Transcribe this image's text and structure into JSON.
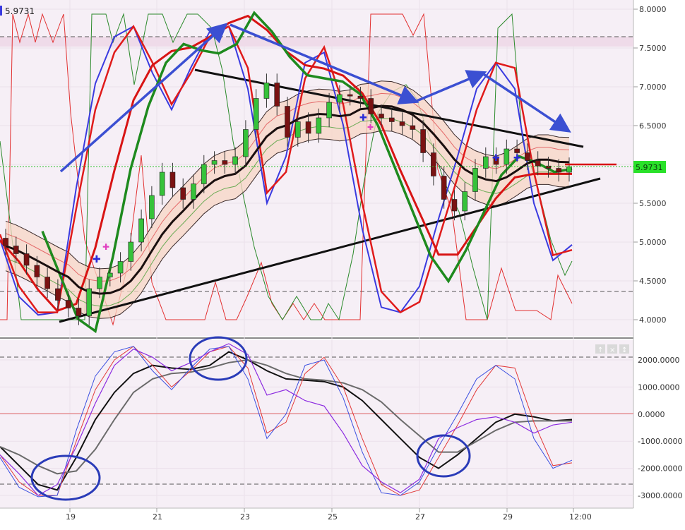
{
  "symbol_value": "5.9731",
  "panel_buttons": [
    "↑",
    "×",
    "↕"
  ],
  "colors": {
    "background": "#f5eef5",
    "candle_up": "#36c23a",
    "candle_down": "#7a1212",
    "last_price_tag": "#29e129",
    "band_fill": "#f7d7c4",
    "red_line": "#e01b1b",
    "blue_line": "#3a3ae0",
    "green_line": "#1e8a1e",
    "trend_arrow": "#3b4fd2",
    "annotation_circle": "#2a3bb8"
  },
  "chart_data": [
    {
      "type": "line",
      "panel": "price",
      "ylim": [
        3.85,
        8.05
      ],
      "y_ticks": [
        "8.0000",
        "7.5000",
        "7.0000",
        "6.5000",
        "6.0000",
        "5.5000",
        "5.0000",
        "4.5000",
        "4.0000"
      ],
      "x_ticks": [
        "19",
        "21",
        "23",
        "25",
        "27",
        "29",
        "12:00"
      ],
      "last_price": 5.9731,
      "last_price_label": "5.9731",
      "grid": true,
      "candles_approx": [
        {
          "o": 5.05,
          "c": 4.95
        },
        {
          "o": 4.95,
          "c": 4.85
        },
        {
          "o": 4.85,
          "c": 4.7
        },
        {
          "o": 4.7,
          "c": 4.55
        },
        {
          "o": 4.55,
          "c": 4.4
        },
        {
          "o": 4.4,
          "c": 4.25
        },
        {
          "o": 4.25,
          "c": 4.15
        },
        {
          "o": 4.15,
          "c": 4.05
        },
        {
          "o": 4.05,
          "c": 4.4
        },
        {
          "o": 4.4,
          "c": 4.55
        },
        {
          "o": 4.55,
          "c": 4.6
        },
        {
          "o": 4.6,
          "c": 4.75
        },
        {
          "o": 4.75,
          "c": 5.0
        },
        {
          "o": 5.0,
          "c": 5.3
        },
        {
          "o": 5.3,
          "c": 5.6
        },
        {
          "o": 5.6,
          "c": 5.9
        },
        {
          "o": 5.9,
          "c": 5.7
        },
        {
          "o": 5.7,
          "c": 5.55
        },
        {
          "o": 5.55,
          "c": 5.75
        },
        {
          "o": 5.75,
          "c": 6.0
        },
        {
          "o": 6.0,
          "c": 6.05
        },
        {
          "o": 6.05,
          "c": 6.0
        },
        {
          "o": 6.0,
          "c": 6.1
        },
        {
          "o": 6.1,
          "c": 6.45
        },
        {
          "o": 6.45,
          "c": 6.85
        },
        {
          "o": 6.85,
          "c": 7.05
        },
        {
          "o": 7.05,
          "c": 6.75
        },
        {
          "o": 6.75,
          "c": 6.35
        },
        {
          "o": 6.35,
          "c": 6.55
        },
        {
          "o": 6.55,
          "c": 6.4
        },
        {
          "o": 6.4,
          "c": 6.6
        },
        {
          "o": 6.6,
          "c": 6.8
        },
        {
          "o": 6.8,
          "c": 6.9
        },
        {
          "o": 6.9,
          "c": 6.88
        },
        {
          "o": 6.88,
          "c": 6.85
        },
        {
          "o": 6.85,
          "c": 6.65
        },
        {
          "o": 6.65,
          "c": 6.6
        },
        {
          "o": 6.6,
          "c": 6.55
        },
        {
          "o": 6.55,
          "c": 6.5
        },
        {
          "o": 6.5,
          "c": 6.45
        },
        {
          "o": 6.45,
          "c": 6.15
        },
        {
          "o": 6.15,
          "c": 5.85
        },
        {
          "o": 5.85,
          "c": 5.55
        },
        {
          "o": 5.55,
          "c": 5.4
        },
        {
          "o": 5.4,
          "c": 5.65
        },
        {
          "o": 5.65,
          "c": 5.95
        },
        {
          "o": 5.95,
          "c": 6.1
        },
        {
          "o": 6.1,
          "c": 6.0
        },
        {
          "o": 6.0,
          "c": 6.2
        },
        {
          "o": 6.2,
          "c": 6.15
        },
        {
          "o": 6.15,
          "c": 6.05
        },
        {
          "o": 6.05,
          "c": 5.98
        },
        {
          "o": 5.98,
          "c": 5.95
        },
        {
          "o": 5.95,
          "c": 5.9
        },
        {
          "o": 5.9,
          "c": 5.97
        }
      ]
    },
    {
      "type": "line",
      "panel": "oscillator",
      "ylim": [
        -3200,
        2700
      ],
      "y_ticks": [
        "2000.0000",
        "1000.0000",
        "0.0000",
        "-1000.0000",
        "-2000.0000",
        "-3000.0000"
      ],
      "x_ticks": [
        "19",
        "21",
        "23",
        "25",
        "27",
        "29",
        "12:00"
      ],
      "grid": true,
      "series": [
        {
          "values": [
            -1200,
            -1900,
            -2600,
            -2800,
            -1600,
            -200,
            800,
            1500,
            1800,
            1700,
            1650,
            1800,
            2300,
            2000,
            1600,
            1300,
            1250,
            1200,
            1000,
            500,
            -200,
            -900,
            -1600,
            -2000,
            -1500,
            -900,
            -300,
            0,
            -100,
            -250,
            -200
          ]
        },
        {
          "values": [
            -1200,
            -1500,
            -1900,
            -2200,
            -2100,
            -1300,
            -200,
            800,
            1300,
            1500,
            1550,
            1700,
            1900,
            2000,
            1800,
            1500,
            1300,
            1250,
            1150,
            900,
            450,
            -200,
            -800,
            -1400,
            -1400,
            -1000,
            -600,
            -300,
            -250,
            -250,
            -250
          ]
        },
        {
          "values": [
            -1500,
            -2500,
            -3000,
            -3000,
            -1000,
            900,
            2000,
            2500,
            1800,
            1000,
            1600,
            2300,
            2500,
            1700,
            -700,
            -300,
            1500,
            2100,
            1000,
            -900,
            -2600,
            -3000,
            -2800,
            -1600,
            -400,
            900,
            1800,
            1700,
            -300,
            -1900,
            -1800
          ]
        },
        {
          "values": [
            -1600,
            -2700,
            -3050,
            -3000,
            -600,
            1400,
            2300,
            2500,
            1600,
            900,
            1700,
            2400,
            2500,
            1300,
            -900,
            0,
            1800,
            2000,
            600,
            -1400,
            -2900,
            -3000,
            -2500,
            -1200,
            0,
            1300,
            1800,
            1300,
            -900,
            -2000,
            -1700
          ]
        },
        {
          "values": [
            -1500,
            -2200,
            -3000,
            -2600,
            -1200,
            400,
            1800,
            2400,
            2100,
            1600,
            1900,
            2300,
            2600,
            2200,
            700,
            900,
            500,
            300,
            -700,
            -1900,
            -2500,
            -2900,
            -2400,
            -900,
            -500,
            -200,
            -100,
            -300,
            -700,
            -400,
            -300
          ]
        }
      ]
    }
  ]
}
